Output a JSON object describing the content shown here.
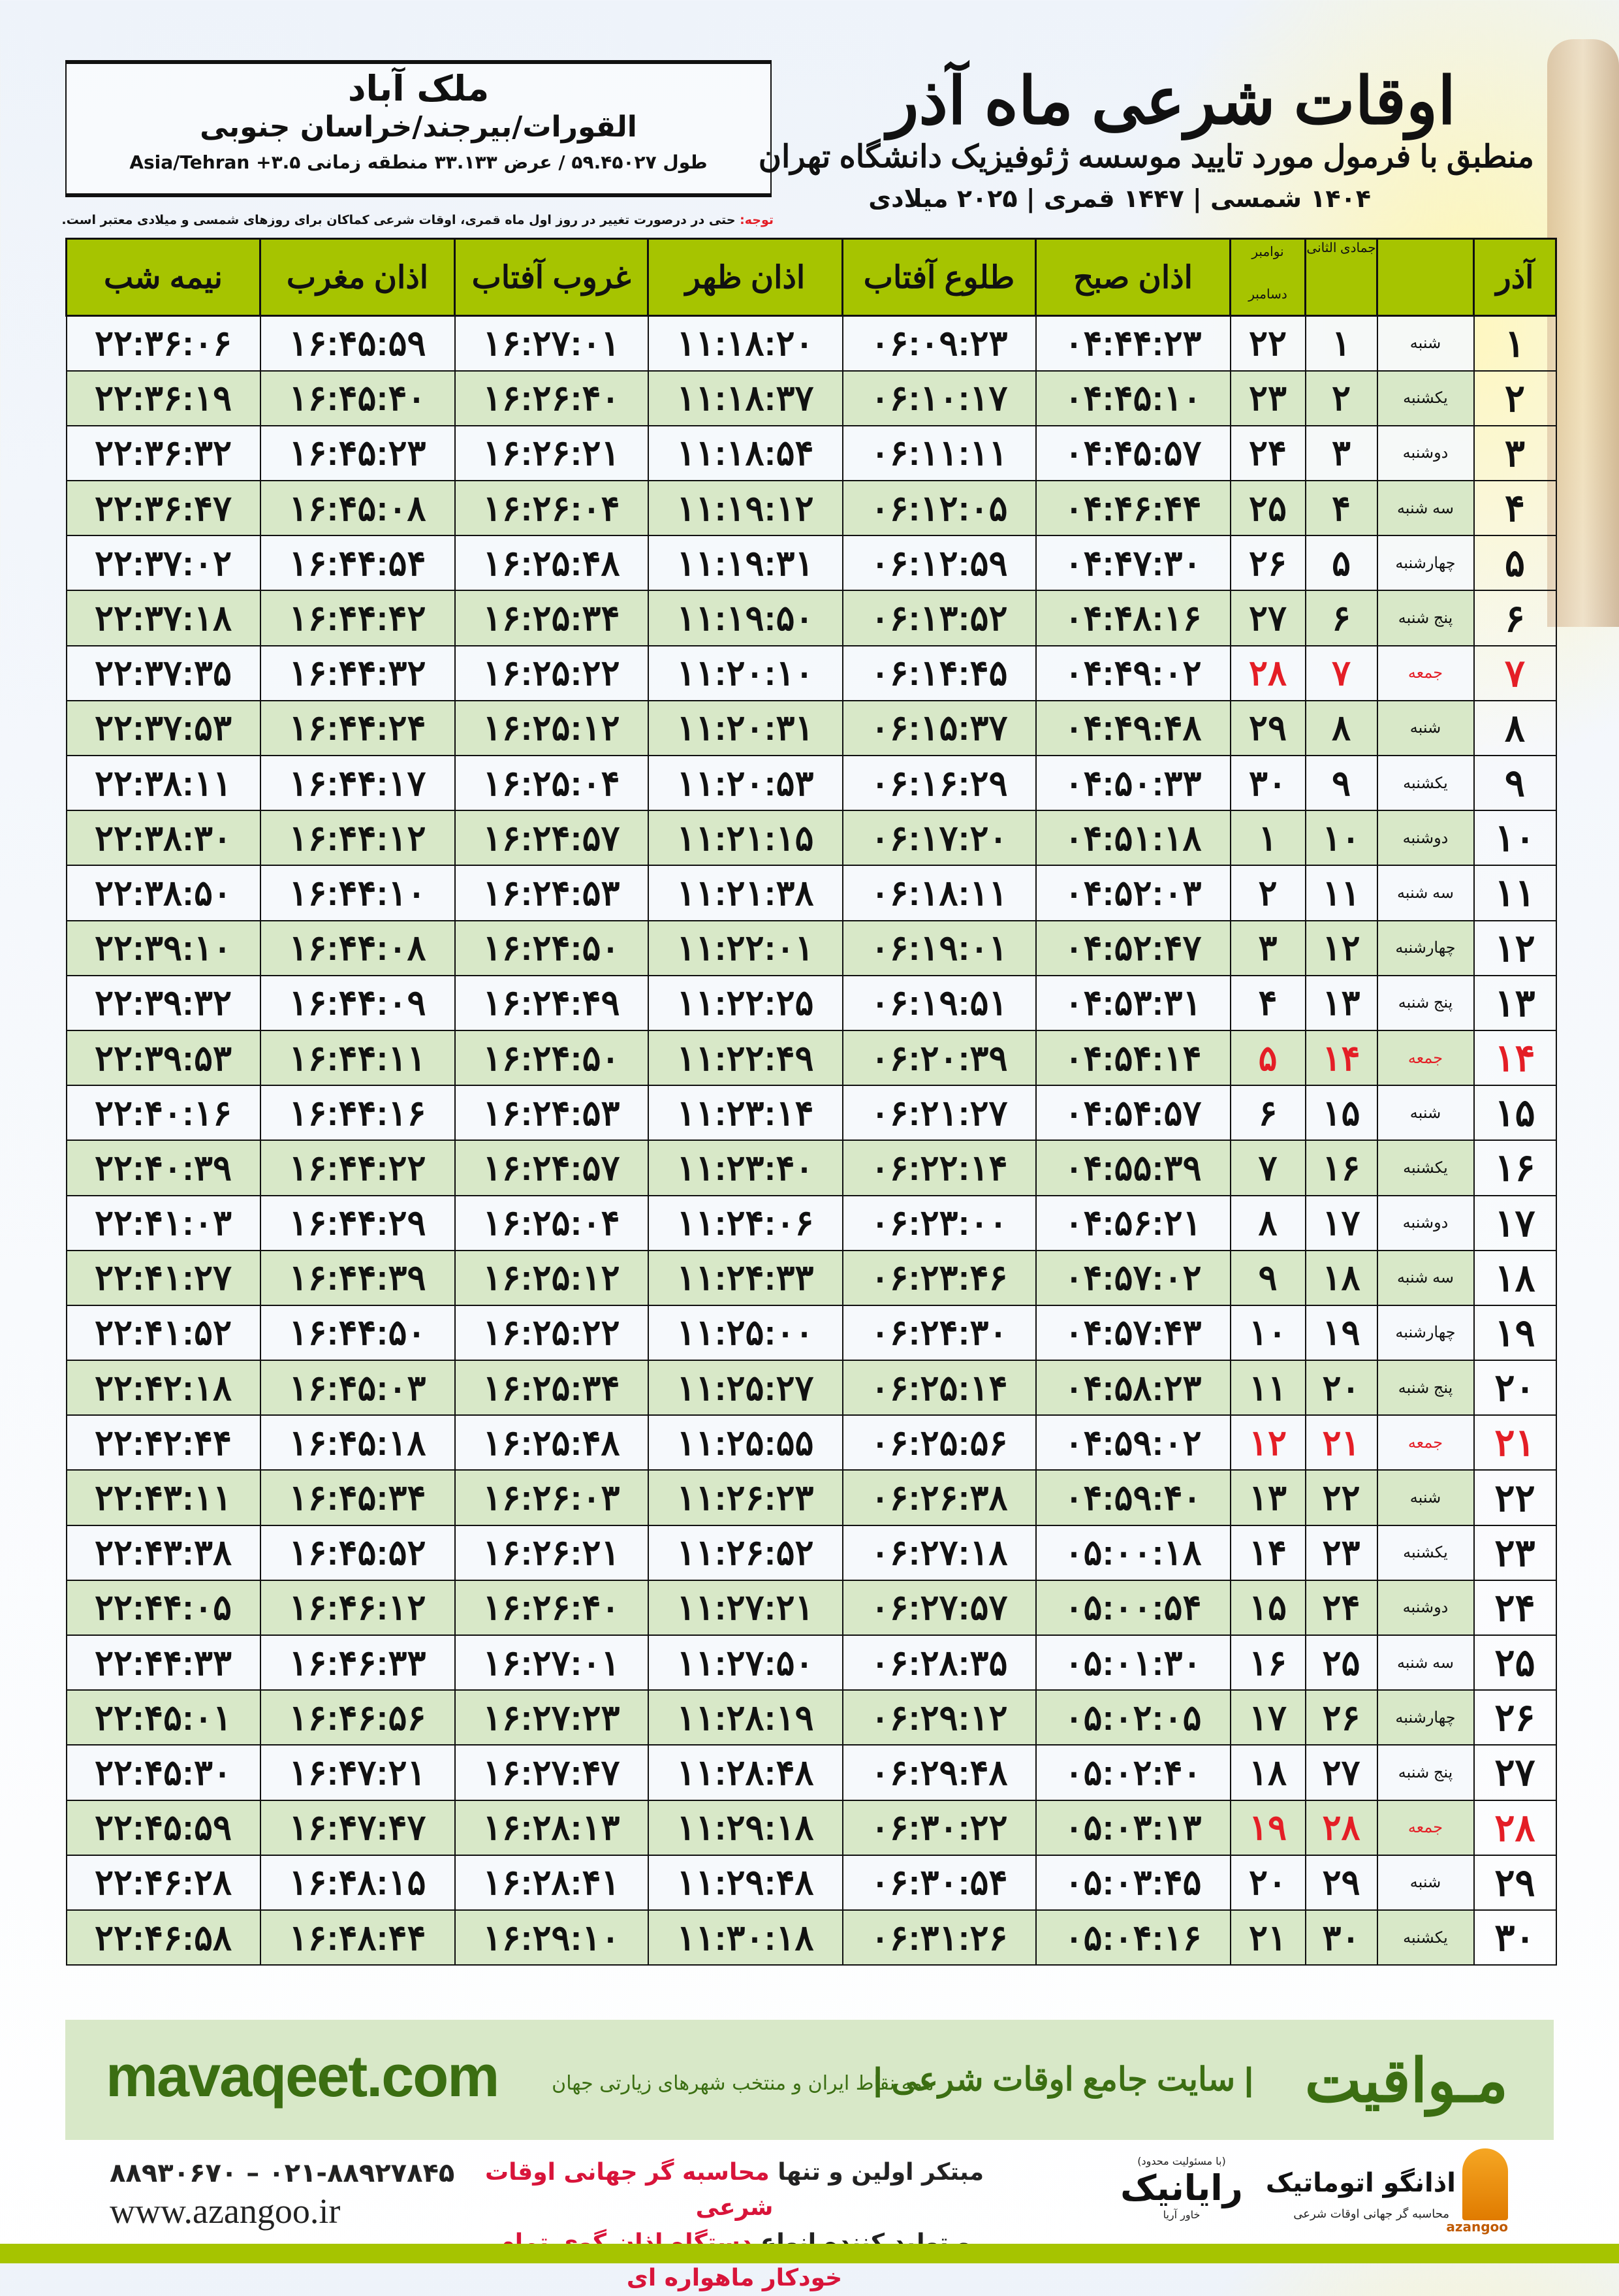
{
  "header": {
    "title": "اوقات شرعی ماه آذر",
    "subtitle": "منطبق با فرمول مورد تایید موسسه ژئوفیزیک دانشگاه تهران",
    "years": "۱۴۰۴ شمسی | ۱۴۴۷ قمری | ۲۰۲۵ میلادی",
    "note_label": "توجه:",
    "note": " حتی در درصورت تغییر در روز اول ماه قمری، اوقات شرعی کماکان برای روزهای شمسی و میلادی معتبر است."
  },
  "location": {
    "city": "ملک آباد",
    "region": "القورات/بیرجند/خراسان جنوبی",
    "coords": "طول ۵۹.۴۵۰۲۷ / عرض ۳۳.۱۳۳ منطقه زمانی ۳.۵+ Asia/Tehran"
  },
  "columns": {
    "day": "آذر",
    "weekday": "",
    "hijri": "جمادی الثانی",
    "gregorian_top": "نوامبر",
    "gregorian_bottom": "دسامبر",
    "fajr": "اذان صبح",
    "sunrise": "طلوع آفتاب",
    "dhuhr": "اذان ظهر",
    "sunset": "غروب آفتاب",
    "maghrib": "اذان مغرب",
    "midnight": "نیمه شب"
  },
  "holiday_color": "#e41e26",
  "header_color": "#a6c400",
  "rows": [
    {
      "day": "۱",
      "weekday": "شنبه",
      "hijri": "۱",
      "gregorian": "۲۲",
      "fajr": "۰۴:۴۴:۲۳",
      "sunrise": "۰۶:۰۹:۲۳",
      "dhuhr": "۱۱:۱۸:۲۰",
      "sunset": "۱۶:۲۷:۰۱",
      "maghrib": "۱۶:۴۵:۵۹",
      "midnight": "۲۲:۳۶:۰۶"
    },
    {
      "day": "۲",
      "weekday": "یکشنبه",
      "hijri": "۲",
      "gregorian": "۲۳",
      "fajr": "۰۴:۴۵:۱۰",
      "sunrise": "۰۶:۱۰:۱۷",
      "dhuhr": "۱۱:۱۸:۳۷",
      "sunset": "۱۶:۲۶:۴۰",
      "maghrib": "۱۶:۴۵:۴۰",
      "midnight": "۲۲:۳۶:۱۹"
    },
    {
      "day": "۳",
      "weekday": "دوشنبه",
      "hijri": "۳",
      "gregorian": "۲۴",
      "fajr": "۰۴:۴۵:۵۷",
      "sunrise": "۰۶:۱۱:۱۱",
      "dhuhr": "۱۱:۱۸:۵۴",
      "sunset": "۱۶:۲۶:۲۱",
      "maghrib": "۱۶:۴۵:۲۳",
      "midnight": "۲۲:۳۶:۳۲"
    },
    {
      "day": "۴",
      "weekday": "سه شنبه",
      "hijri": "۴",
      "gregorian": "۲۵",
      "fajr": "۰۴:۴۶:۴۴",
      "sunrise": "۰۶:۱۲:۰۵",
      "dhuhr": "۱۱:۱۹:۱۲",
      "sunset": "۱۶:۲۶:۰۴",
      "maghrib": "۱۶:۴۵:۰۸",
      "midnight": "۲۲:۳۶:۴۷"
    },
    {
      "day": "۵",
      "weekday": "چهارشنبه",
      "hijri": "۵",
      "gregorian": "۲۶",
      "fajr": "۰۴:۴۷:۳۰",
      "sunrise": "۰۶:۱۲:۵۹",
      "dhuhr": "۱۱:۱۹:۳۱",
      "sunset": "۱۶:۲۵:۴۸",
      "maghrib": "۱۶:۴۴:۵۴",
      "midnight": "۲۲:۳۷:۰۲"
    },
    {
      "day": "۶",
      "weekday": "پنج شنبه",
      "hijri": "۶",
      "gregorian": "۲۷",
      "fajr": "۰۴:۴۸:۱۶",
      "sunrise": "۰۶:۱۳:۵۲",
      "dhuhr": "۱۱:۱۹:۵۰",
      "sunset": "۱۶:۲۵:۳۴",
      "maghrib": "۱۶:۴۴:۴۲",
      "midnight": "۲۲:۳۷:۱۸"
    },
    {
      "day": "۷",
      "weekday": "جمعه",
      "hijri": "۷",
      "gregorian": "۲۸",
      "fajr": "۰۴:۴۹:۰۲",
      "sunrise": "۰۶:۱۴:۴۵",
      "dhuhr": "۱۱:۲۰:۱۰",
      "sunset": "۱۶:۲۵:۲۲",
      "maghrib": "۱۶:۴۴:۳۲",
      "midnight": "۲۲:۳۷:۳۵",
      "holiday": true
    },
    {
      "day": "۸",
      "weekday": "شنبه",
      "hijri": "۸",
      "gregorian": "۲۹",
      "fajr": "۰۴:۴۹:۴۸",
      "sunrise": "۰۶:۱۵:۳۷",
      "dhuhr": "۱۱:۲۰:۳۱",
      "sunset": "۱۶:۲۵:۱۲",
      "maghrib": "۱۶:۴۴:۲۴",
      "midnight": "۲۲:۳۷:۵۳"
    },
    {
      "day": "۹",
      "weekday": "یکشنبه",
      "hijri": "۹",
      "gregorian": "۳۰",
      "fajr": "۰۴:۵۰:۳۳",
      "sunrise": "۰۶:۱۶:۲۹",
      "dhuhr": "۱۱:۲۰:۵۳",
      "sunset": "۱۶:۲۵:۰۴",
      "maghrib": "۱۶:۴۴:۱۷",
      "midnight": "۲۲:۳۸:۱۱"
    },
    {
      "day": "۱۰",
      "weekday": "دوشنبه",
      "hijri": "۱۰",
      "gregorian": "۱",
      "fajr": "۰۴:۵۱:۱۸",
      "sunrise": "۰۶:۱۷:۲۰",
      "dhuhr": "۱۱:۲۱:۱۵",
      "sunset": "۱۶:۲۴:۵۷",
      "maghrib": "۱۶:۴۴:۱۲",
      "midnight": "۲۲:۳۸:۳۰"
    },
    {
      "day": "۱۱",
      "weekday": "سه شنبه",
      "hijri": "۱۱",
      "gregorian": "۲",
      "fajr": "۰۴:۵۲:۰۳",
      "sunrise": "۰۶:۱۸:۱۱",
      "dhuhr": "۱۱:۲۱:۳۸",
      "sunset": "۱۶:۲۴:۵۳",
      "maghrib": "۱۶:۴۴:۱۰",
      "midnight": "۲۲:۳۸:۵۰"
    },
    {
      "day": "۱۲",
      "weekday": "چهارشنبه",
      "hijri": "۱۲",
      "gregorian": "۳",
      "fajr": "۰۴:۵۲:۴۷",
      "sunrise": "۰۶:۱۹:۰۱",
      "dhuhr": "۱۱:۲۲:۰۱",
      "sunset": "۱۶:۲۴:۵۰",
      "maghrib": "۱۶:۴۴:۰۸",
      "midnight": "۲۲:۳۹:۱۰"
    },
    {
      "day": "۱۳",
      "weekday": "پنج شنبه",
      "hijri": "۱۳",
      "gregorian": "۴",
      "fajr": "۰۴:۵۳:۳۱",
      "sunrise": "۰۶:۱۹:۵۱",
      "dhuhr": "۱۱:۲۲:۲۵",
      "sunset": "۱۶:۲۴:۴۹",
      "maghrib": "۱۶:۴۴:۰۹",
      "midnight": "۲۲:۳۹:۳۲"
    },
    {
      "day": "۱۴",
      "weekday": "جمعه",
      "hijri": "۱۴",
      "gregorian": "۵",
      "fajr": "۰۴:۵۴:۱۴",
      "sunrise": "۰۶:۲۰:۳۹",
      "dhuhr": "۱۱:۲۲:۴۹",
      "sunset": "۱۶:۲۴:۵۰",
      "maghrib": "۱۶:۴۴:۱۱",
      "midnight": "۲۲:۳۹:۵۳",
      "holiday": true
    },
    {
      "day": "۱۵",
      "weekday": "شنبه",
      "hijri": "۱۵",
      "gregorian": "۶",
      "fajr": "۰۴:۵۴:۵۷",
      "sunrise": "۰۶:۲۱:۲۷",
      "dhuhr": "۱۱:۲۳:۱۴",
      "sunset": "۱۶:۲۴:۵۳",
      "maghrib": "۱۶:۴۴:۱۶",
      "midnight": "۲۲:۴۰:۱۶"
    },
    {
      "day": "۱۶",
      "weekday": "یکشنبه",
      "hijri": "۱۶",
      "gregorian": "۷",
      "fajr": "۰۴:۵۵:۳۹",
      "sunrise": "۰۶:۲۲:۱۴",
      "dhuhr": "۱۱:۲۳:۴۰",
      "sunset": "۱۶:۲۴:۵۷",
      "maghrib": "۱۶:۴۴:۲۲",
      "midnight": "۲۲:۴۰:۳۹"
    },
    {
      "day": "۱۷",
      "weekday": "دوشنبه",
      "hijri": "۱۷",
      "gregorian": "۸",
      "fajr": "۰۴:۵۶:۲۱",
      "sunrise": "۰۶:۲۳:۰۰",
      "dhuhr": "۱۱:۲۴:۰۶",
      "sunset": "۱۶:۲۵:۰۴",
      "maghrib": "۱۶:۴۴:۲۹",
      "midnight": "۲۲:۴۱:۰۳"
    },
    {
      "day": "۱۸",
      "weekday": "سه شنبه",
      "hijri": "۱۸",
      "gregorian": "۹",
      "fajr": "۰۴:۵۷:۰۲",
      "sunrise": "۰۶:۲۳:۴۶",
      "dhuhr": "۱۱:۲۴:۳۳",
      "sunset": "۱۶:۲۵:۱۲",
      "maghrib": "۱۶:۴۴:۳۹",
      "midnight": "۲۲:۴۱:۲۷"
    },
    {
      "day": "۱۹",
      "weekday": "چهارشنبه",
      "hijri": "۱۹",
      "gregorian": "۱۰",
      "fajr": "۰۴:۵۷:۴۳",
      "sunrise": "۰۶:۲۴:۳۰",
      "dhuhr": "۱۱:۲۵:۰۰",
      "sunset": "۱۶:۲۵:۲۲",
      "maghrib": "۱۶:۴۴:۵۰",
      "midnight": "۲۲:۴۱:۵۲"
    },
    {
      "day": "۲۰",
      "weekday": "پنج شنبه",
      "hijri": "۲۰",
      "gregorian": "۱۱",
      "fajr": "۰۴:۵۸:۲۳",
      "sunrise": "۰۶:۲۵:۱۴",
      "dhuhr": "۱۱:۲۵:۲۷",
      "sunset": "۱۶:۲۵:۳۴",
      "maghrib": "۱۶:۴۵:۰۳",
      "midnight": "۲۲:۴۲:۱۸"
    },
    {
      "day": "۲۱",
      "weekday": "جمعه",
      "hijri": "۲۱",
      "gregorian": "۱۲",
      "fajr": "۰۴:۵۹:۰۲",
      "sunrise": "۰۶:۲۵:۵۶",
      "dhuhr": "۱۱:۲۵:۵۵",
      "sunset": "۱۶:۲۵:۴۸",
      "maghrib": "۱۶:۴۵:۱۸",
      "midnight": "۲۲:۴۲:۴۴",
      "holiday": true
    },
    {
      "day": "۲۲",
      "weekday": "شنبه",
      "hijri": "۲۲",
      "gregorian": "۱۳",
      "fajr": "۰۴:۵۹:۴۰",
      "sunrise": "۰۶:۲۶:۳۸",
      "dhuhr": "۱۱:۲۶:۲۳",
      "sunset": "۱۶:۲۶:۰۳",
      "maghrib": "۱۶:۴۵:۳۴",
      "midnight": "۲۲:۴۳:۱۱"
    },
    {
      "day": "۲۳",
      "weekday": "یکشنبه",
      "hijri": "۲۳",
      "gregorian": "۱۴",
      "fajr": "۰۵:۰۰:۱۸",
      "sunrise": "۰۶:۲۷:۱۸",
      "dhuhr": "۱۱:۲۶:۵۲",
      "sunset": "۱۶:۲۶:۲۱",
      "maghrib": "۱۶:۴۵:۵۲",
      "midnight": "۲۲:۴۳:۳۸"
    },
    {
      "day": "۲۴",
      "weekday": "دوشنبه",
      "hijri": "۲۴",
      "gregorian": "۱۵",
      "fajr": "۰۵:۰۰:۵۴",
      "sunrise": "۰۶:۲۷:۵۷",
      "dhuhr": "۱۱:۲۷:۲۱",
      "sunset": "۱۶:۲۶:۴۰",
      "maghrib": "۱۶:۴۶:۱۲",
      "midnight": "۲۲:۴۴:۰۵"
    },
    {
      "day": "۲۵",
      "weekday": "سه شنبه",
      "hijri": "۲۵",
      "gregorian": "۱۶",
      "fajr": "۰۵:۰۱:۳۰",
      "sunrise": "۰۶:۲۸:۳۵",
      "dhuhr": "۱۱:۲۷:۵۰",
      "sunset": "۱۶:۲۷:۰۱",
      "maghrib": "۱۶:۴۶:۳۳",
      "midnight": "۲۲:۴۴:۳۳"
    },
    {
      "day": "۲۶",
      "weekday": "چهارشنبه",
      "hijri": "۲۶",
      "gregorian": "۱۷",
      "fajr": "۰۵:۰۲:۰۵",
      "sunrise": "۰۶:۲۹:۱۲",
      "dhuhr": "۱۱:۲۸:۱۹",
      "sunset": "۱۶:۲۷:۲۳",
      "maghrib": "۱۶:۴۶:۵۶",
      "midnight": "۲۲:۴۵:۰۱"
    },
    {
      "day": "۲۷",
      "weekday": "پنج شنبه",
      "hijri": "۲۷",
      "gregorian": "۱۸",
      "fajr": "۰۵:۰۲:۴۰",
      "sunrise": "۰۶:۲۹:۴۸",
      "dhuhr": "۱۱:۲۸:۴۸",
      "sunset": "۱۶:۲۷:۴۷",
      "maghrib": "۱۶:۴۷:۲۱",
      "midnight": "۲۲:۴۵:۳۰"
    },
    {
      "day": "۲۸",
      "weekday": "جمعه",
      "hijri": "۲۸",
      "gregorian": "۱۹",
      "fajr": "۰۵:۰۳:۱۳",
      "sunrise": "۰۶:۳۰:۲۲",
      "dhuhr": "۱۱:۲۹:۱۸",
      "sunset": "۱۶:۲۸:۱۳",
      "maghrib": "۱۶:۴۷:۴۷",
      "midnight": "۲۲:۴۵:۵۹",
      "holiday": true
    },
    {
      "day": "۲۹",
      "weekday": "شنبه",
      "hijri": "۲۹",
      "gregorian": "۲۰",
      "fajr": "۰۵:۰۳:۴۵",
      "sunrise": "۰۶:۳۰:۵۴",
      "dhuhr": "۱۱:۲۹:۴۸",
      "sunset": "۱۶:۲۸:۴۱",
      "maghrib": "۱۶:۴۸:۱۵",
      "midnight": "۲۲:۴۶:۲۸"
    },
    {
      "day": "۳۰",
      "weekday": "یکشنبه",
      "hijri": "۳۰",
      "gregorian": "۲۱",
      "fajr": "۰۵:۰۴:۱۶",
      "sunrise": "۰۶:۳۱:۲۶",
      "dhuhr": "۱۱:۳۰:۱۸",
      "sunset": "۱۶:۲۹:۱۰",
      "maghrib": "۱۶:۴۸:۴۴",
      "midnight": "۲۲:۴۶:۵۸"
    }
  ],
  "footer": {
    "brand": "مـواقیت",
    "brand_tagline": "| سایت جامع اوقات شرعی |",
    "brand_tagline2": "همه نقاط ایران و منتخب شهرهای زیارتی جهان",
    "site": "mavaqeet.com",
    "phone": "۰۲۱-۸۸۹۲۷۸۴۵ – ۸۸۹۳۰۶۷۰",
    "web": "www.azangoo.ir",
    "promo1_a": "مبتکر اولین و تنها ",
    "promo1_b": "محاسبه گر جهانی اوقات شرعی",
    "promo2_a": "و تولید کننده انواع ",
    "promo2_b": "دستگاه اذان گوی تمام خودکار ماهواره ای",
    "logo1_note": "(با مسئولیت محدود)",
    "logo1_name": "رایانیک",
    "logo1_sub": "خاور آریا",
    "logo2_name": "اذانگو اتوماتیک",
    "logo2_en": "azangoo",
    "logo2_sub": "محاسبه گر جهانی اوقات شرعی",
    "brand_color": "#3b6e12"
  }
}
